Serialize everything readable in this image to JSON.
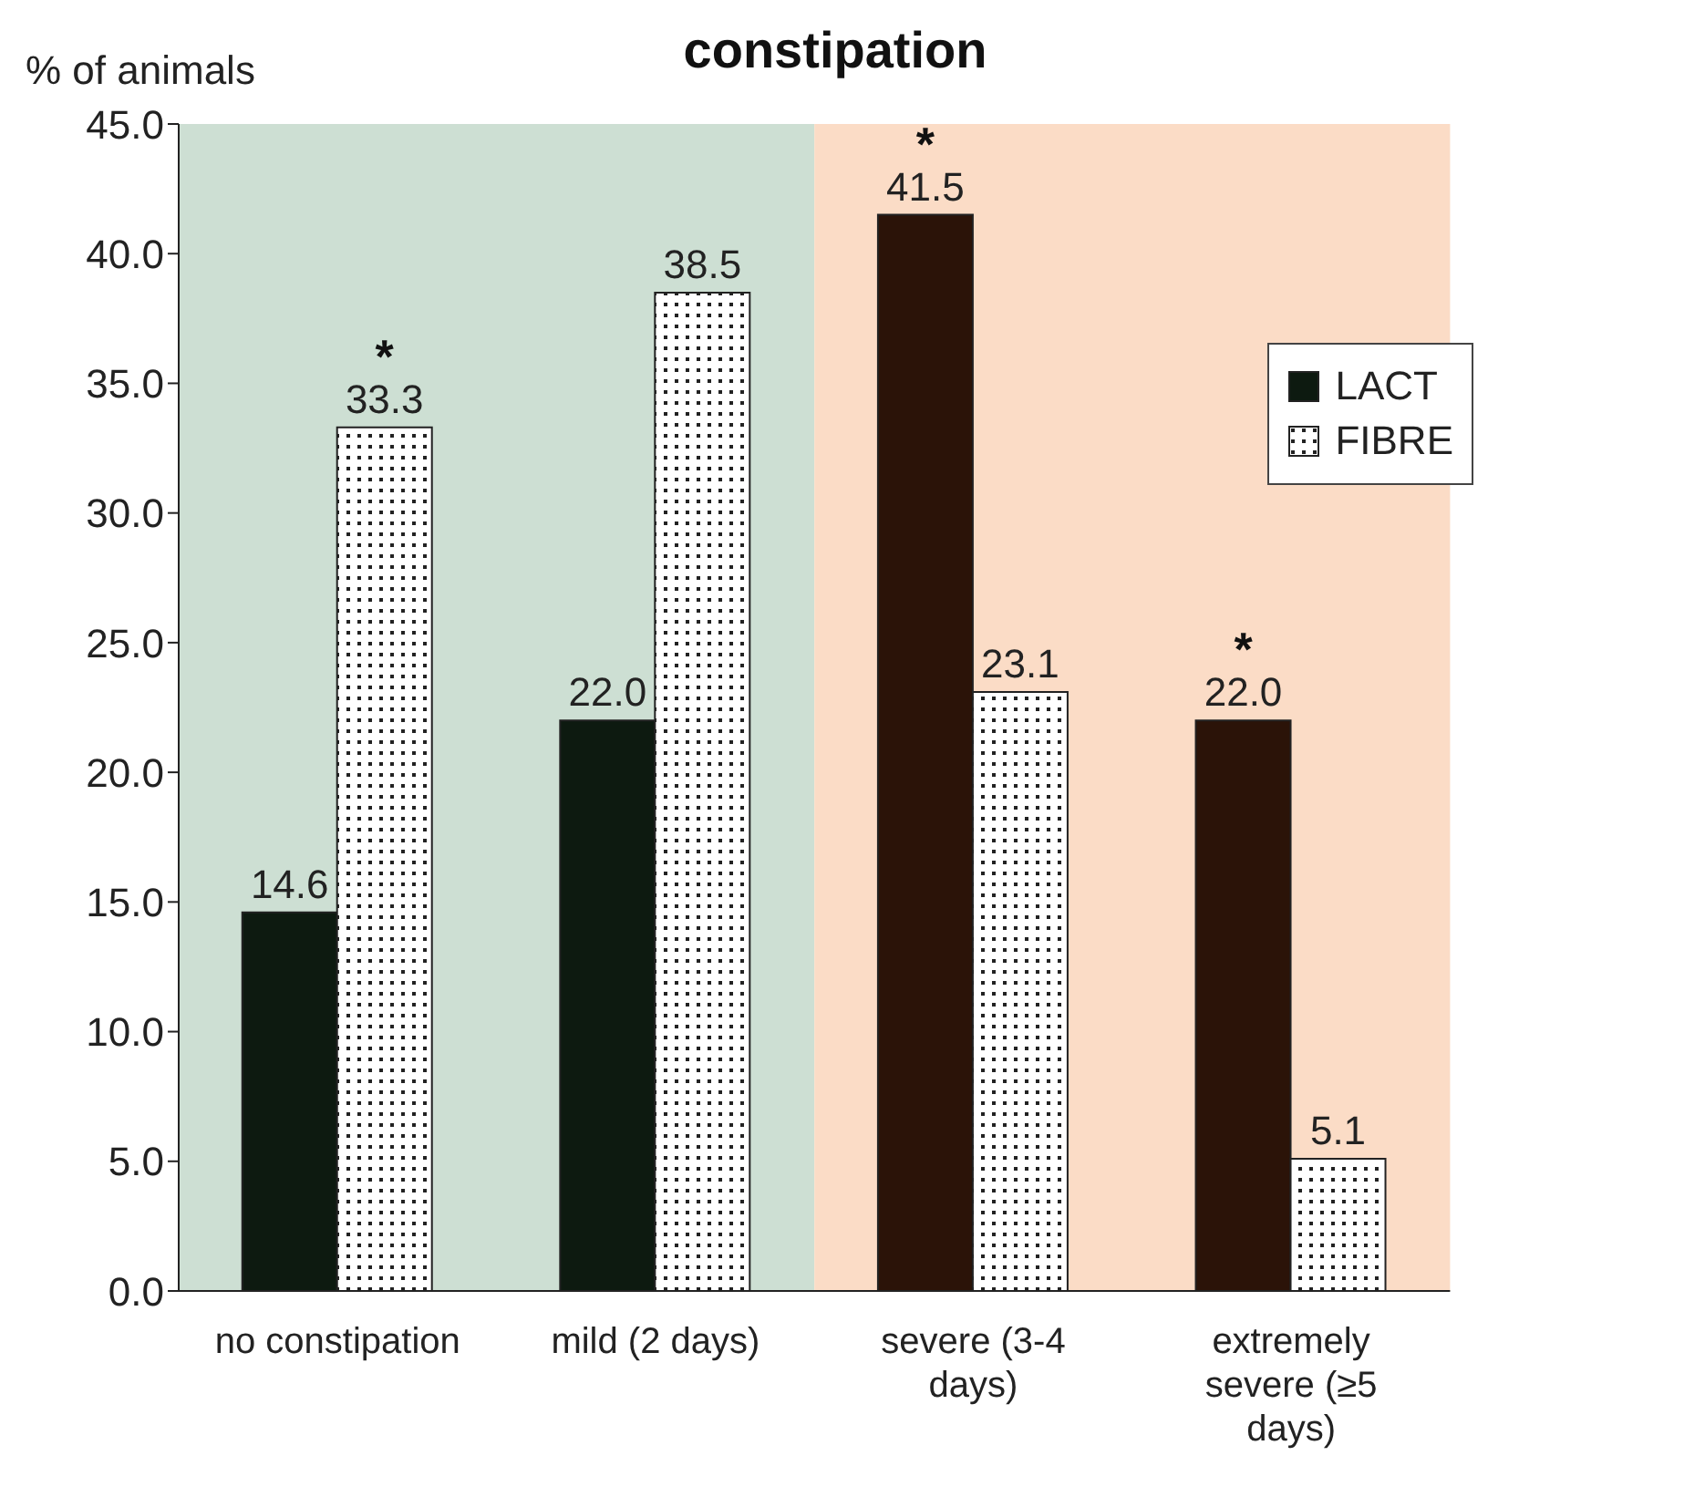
{
  "chart_data": {
    "type": "bar",
    "title": "constipation",
    "ylabel": "% of animals",
    "categories": [
      "no constipation",
      "mild (2 days)",
      "severe (3-4 days)",
      "extremely severe (≥5 days)"
    ],
    "series": [
      {
        "name": "LACT",
        "color": "#0d1a10",
        "colors": [
          "#0d1a10",
          "#0d1a10",
          "#2b1308",
          "#2b1308"
        ],
        "values": [
          14.6,
          22.0,
          41.5,
          22.0
        ],
        "value_labels": [
          "14.6",
          "22.0",
          "41.5",
          "22.0"
        ]
      },
      {
        "name": "FIBRE",
        "color": "#222222",
        "values": [
          33.3,
          38.5,
          23.1,
          5.1
        ],
        "value_labels": [
          "33.3",
          "38.5",
          "23.1",
          "5.1"
        ]
      }
    ],
    "ylim": [
      0,
      45
    ],
    "yticks": [
      {
        "value": 0,
        "label": "0.0"
      },
      {
        "value": 5,
        "label": "5.0"
      },
      {
        "value": 10,
        "label": "10.0"
      },
      {
        "value": 15,
        "label": "15.0"
      },
      {
        "value": 20,
        "label": "20.0"
      },
      {
        "value": 25,
        "label": "25.0"
      },
      {
        "value": 30,
        "label": "30.0"
      },
      {
        "value": 35,
        "label": "35.0"
      },
      {
        "value": 40,
        "label": "40.0"
      },
      {
        "value": 45,
        "label": "45.0"
      }
    ],
    "bands": [
      {
        "axis": "x",
        "from": "no constipation",
        "to": "mild (2 days)",
        "color": "#cddfd3"
      },
      {
        "axis": "x",
        "from": "severe (3-4 days)",
        "to": "extremely severe (≥5 days)",
        "color": "#fbdcc6"
      }
    ],
    "annotations": [
      {
        "text": "*",
        "x": "no constipation",
        "y": 33.3
      },
      {
        "text": "*",
        "x": "severe (3-4 days)",
        "y": 41.5
      },
      {
        "text": "*",
        "x": "extremely severe (≥5 days)",
        "y": 22.0
      }
    ],
    "legend": "top right",
    "grid": false
  }
}
